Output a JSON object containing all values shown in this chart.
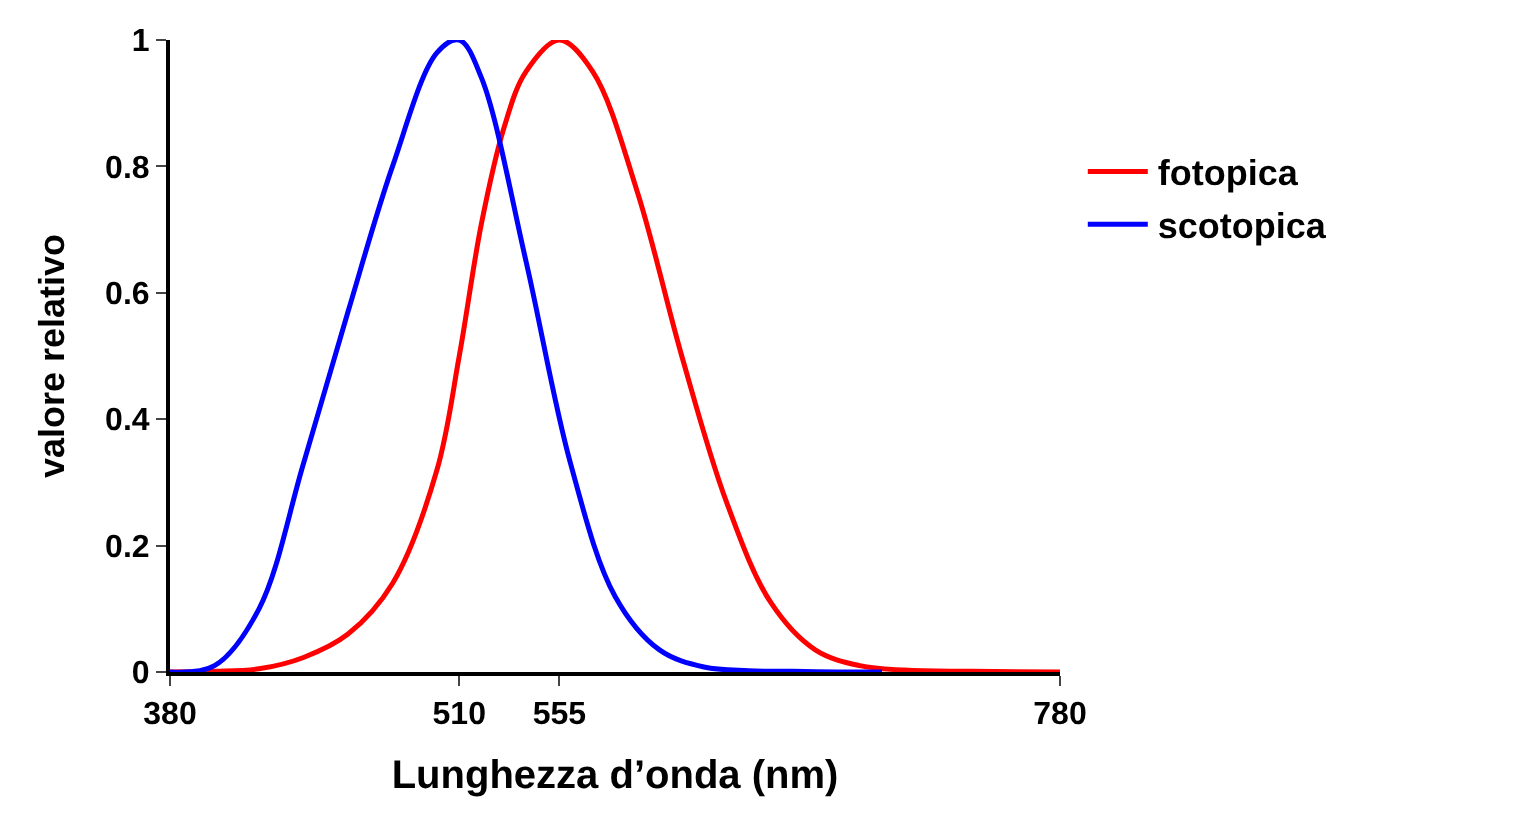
{
  "chart_data": {
    "type": "line",
    "xlabel": "Lunghezza d’onda (nm)",
    "ylabel": "valore relativo",
    "xlim": [
      380,
      780
    ],
    "xticks": [
      380,
      510,
      555,
      780
    ],
    "ylim": [
      0,
      1
    ],
    "yticks": [
      0,
      0.2,
      0.4,
      0.6,
      0.8,
      1
    ],
    "legend": "right",
    "marker": "none",
    "line_style": "solid",
    "series": [
      {
        "name": "fotopica",
        "color": "#ff0000",
        "x": [
          380,
          400,
          420,
          440,
          460,
          480,
          500,
          510,
          520,
          530,
          540,
          555,
          570,
          590,
          610,
          630,
          650,
          670,
          690,
          710,
          740,
          780
        ],
        "values": [
          0,
          0.001,
          0.005,
          0.023,
          0.06,
          0.14,
          0.32,
          0.5,
          0.71,
          0.86,
          0.95,
          1,
          0.95,
          0.76,
          0.5,
          0.27,
          0.11,
          0.035,
          0.01,
          0.003,
          0.001,
          0
        ]
      },
      {
        "name": "scotopica",
        "color": "#0000ff",
        "x": [
          380,
          400,
          420,
          440,
          460,
          480,
          500,
          510,
          520,
          540,
          560,
          580,
          600,
          620,
          640,
          660,
          680,
          700
        ],
        "values": [
          0,
          0.01,
          0.1,
          0.33,
          0.57,
          0.8,
          0.98,
          1,
          0.94,
          0.65,
          0.33,
          0.12,
          0.035,
          0.008,
          0.002,
          0.001,
          0,
          0
        ]
      }
    ]
  }
}
